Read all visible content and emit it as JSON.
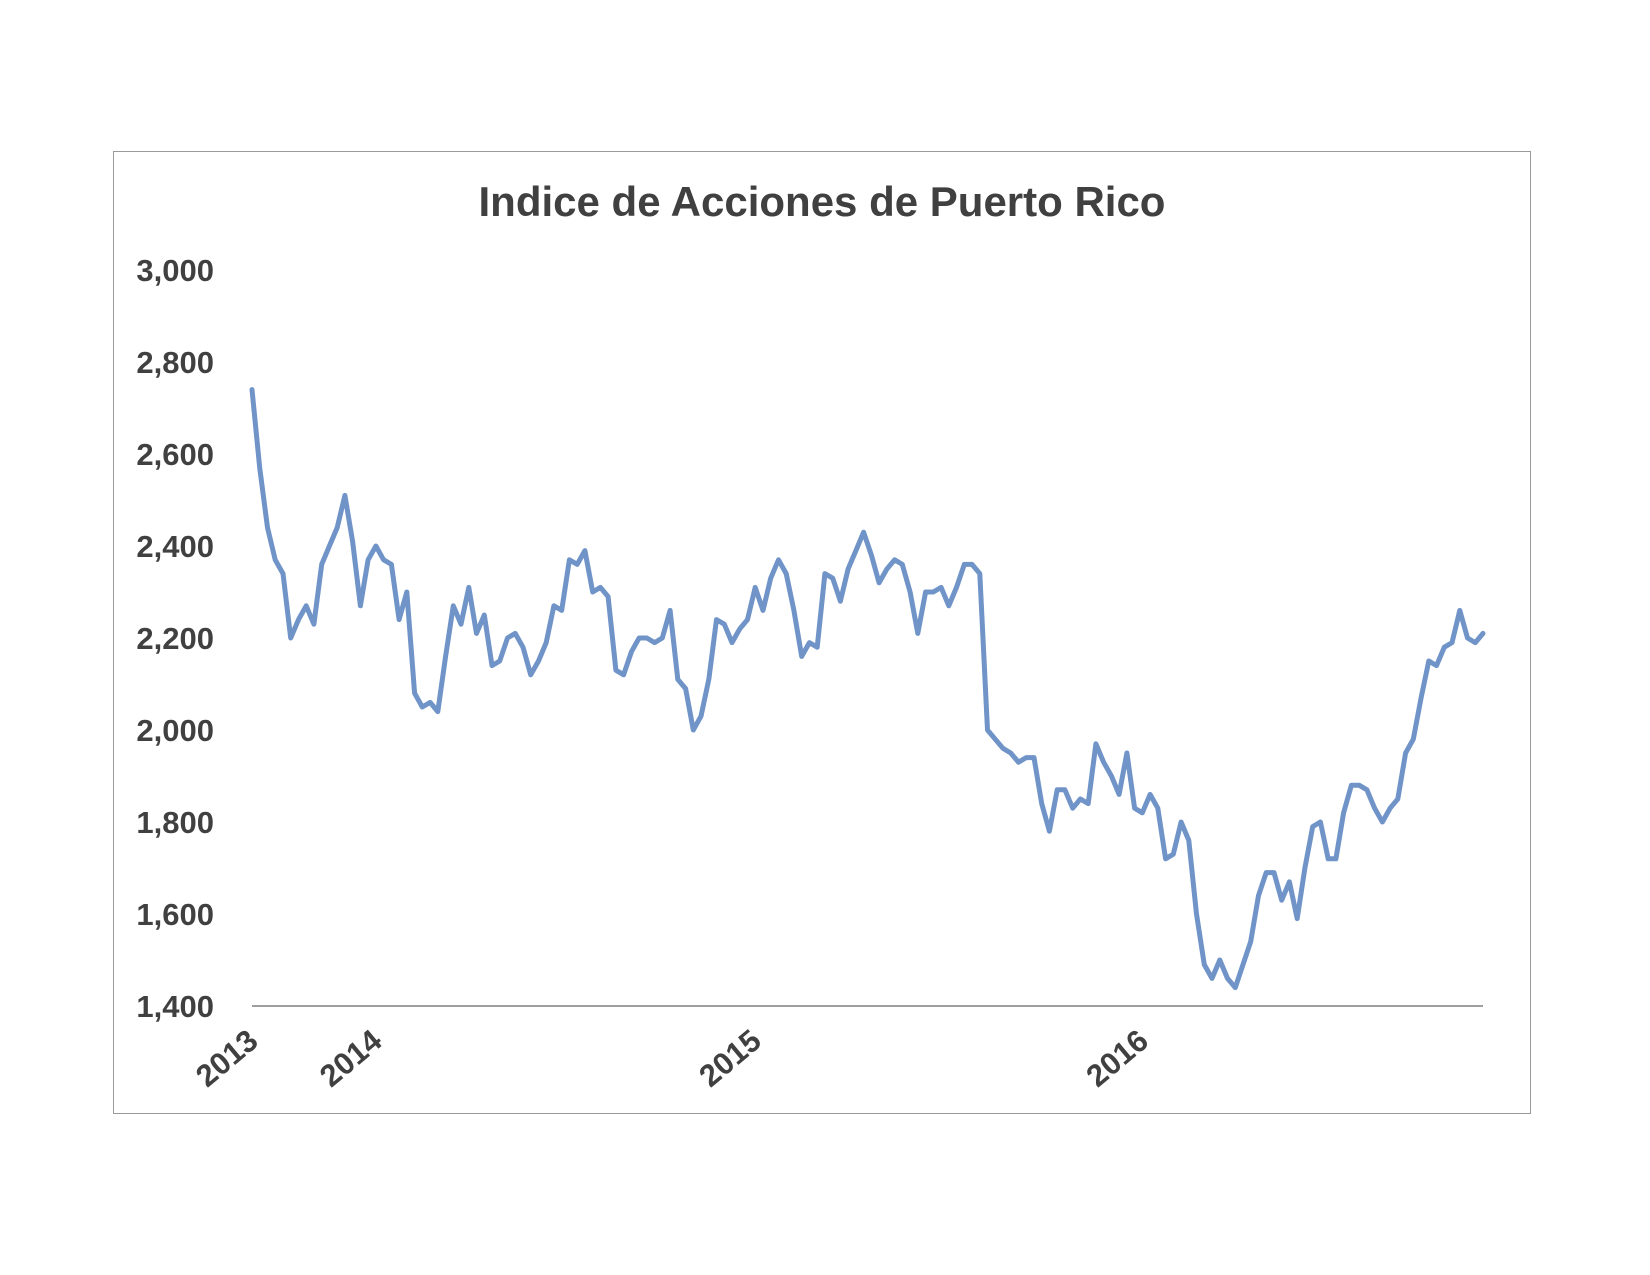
{
  "chart_data": {
    "type": "line",
    "title": "Indice de Acciones de Puerto Rico",
    "xlabel": "",
    "ylabel": "",
    "ylim": [
      1400,
      3000
    ],
    "yticks": [
      1400,
      1600,
      1800,
      2000,
      2200,
      2400,
      2600,
      2800,
      3000
    ],
    "ytick_labels": [
      "1,400",
      "1,600",
      "1,800",
      "2,000",
      "2,200",
      "2,400",
      "2,600",
      "2,800",
      "3,000"
    ],
    "xtick_labels": [
      "2013",
      "2014",
      "2015",
      "2016"
    ],
    "xtick_positions": [
      0,
      16,
      65,
      115
    ],
    "x_range": [
      0,
      150
    ],
    "grid": false,
    "line_color": "#7094c8",
    "series": [
      {
        "values": [
          2740,
          2570,
          2440,
          2370,
          2340,
          2200,
          2240,
          2270,
          2230,
          2360,
          2400,
          2440,
          2510,
          2410,
          2270,
          2370,
          2400,
          2370,
          2360,
          2240,
          2300,
          2080,
          2050,
          2060,
          2040,
          2160,
          2270,
          2230,
          2310,
          2210,
          2250,
          2140,
          2150,
          2200,
          2210,
          2180,
          2120,
          2150,
          2190,
          2270,
          2260,
          2370,
          2360,
          2390,
          2300,
          2310,
          2290,
          2130,
          2120,
          2170,
          2200,
          2200,
          2190,
          2200,
          2260,
          2110,
          2090,
          2000,
          2030,
          2110,
          2240,
          2230,
          2190,
          2220,
          2240,
          2310,
          2260,
          2330,
          2370,
          2340,
          2260,
          2160,
          2190,
          2180,
          2340,
          2330,
          2280,
          2350,
          2390,
          2430,
          2380,
          2320,
          2350,
          2370,
          2360,
          2300,
          2210,
          2300,
          2300,
          2310,
          2270,
          2310,
          2360,
          2360,
          2340,
          2000,
          1980,
          1960,
          1950,
          1930,
          1940,
          1940,
          1840,
          1780,
          1870,
          1870,
          1830,
          1850,
          1840,
          1970,
          1930,
          1900,
          1860,
          1950,
          1830,
          1820,
          1860,
          1830,
          1720,
          1730,
          1800,
          1760,
          1600,
          1490,
          1460,
          1500,
          1460,
          1440,
          1490,
          1540,
          1640,
          1690,
          1690,
          1630,
          1670,
          1590,
          1700,
          1790,
          1800,
          1720,
          1720,
          1820,
          1880,
          1880,
          1870,
          1830,
          1800,
          1830,
          1850,
          1950,
          1980,
          2070,
          2150,
          2140,
          2180,
          2190,
          2260,
          2200,
          2190,
          2210
        ]
      }
    ]
  }
}
